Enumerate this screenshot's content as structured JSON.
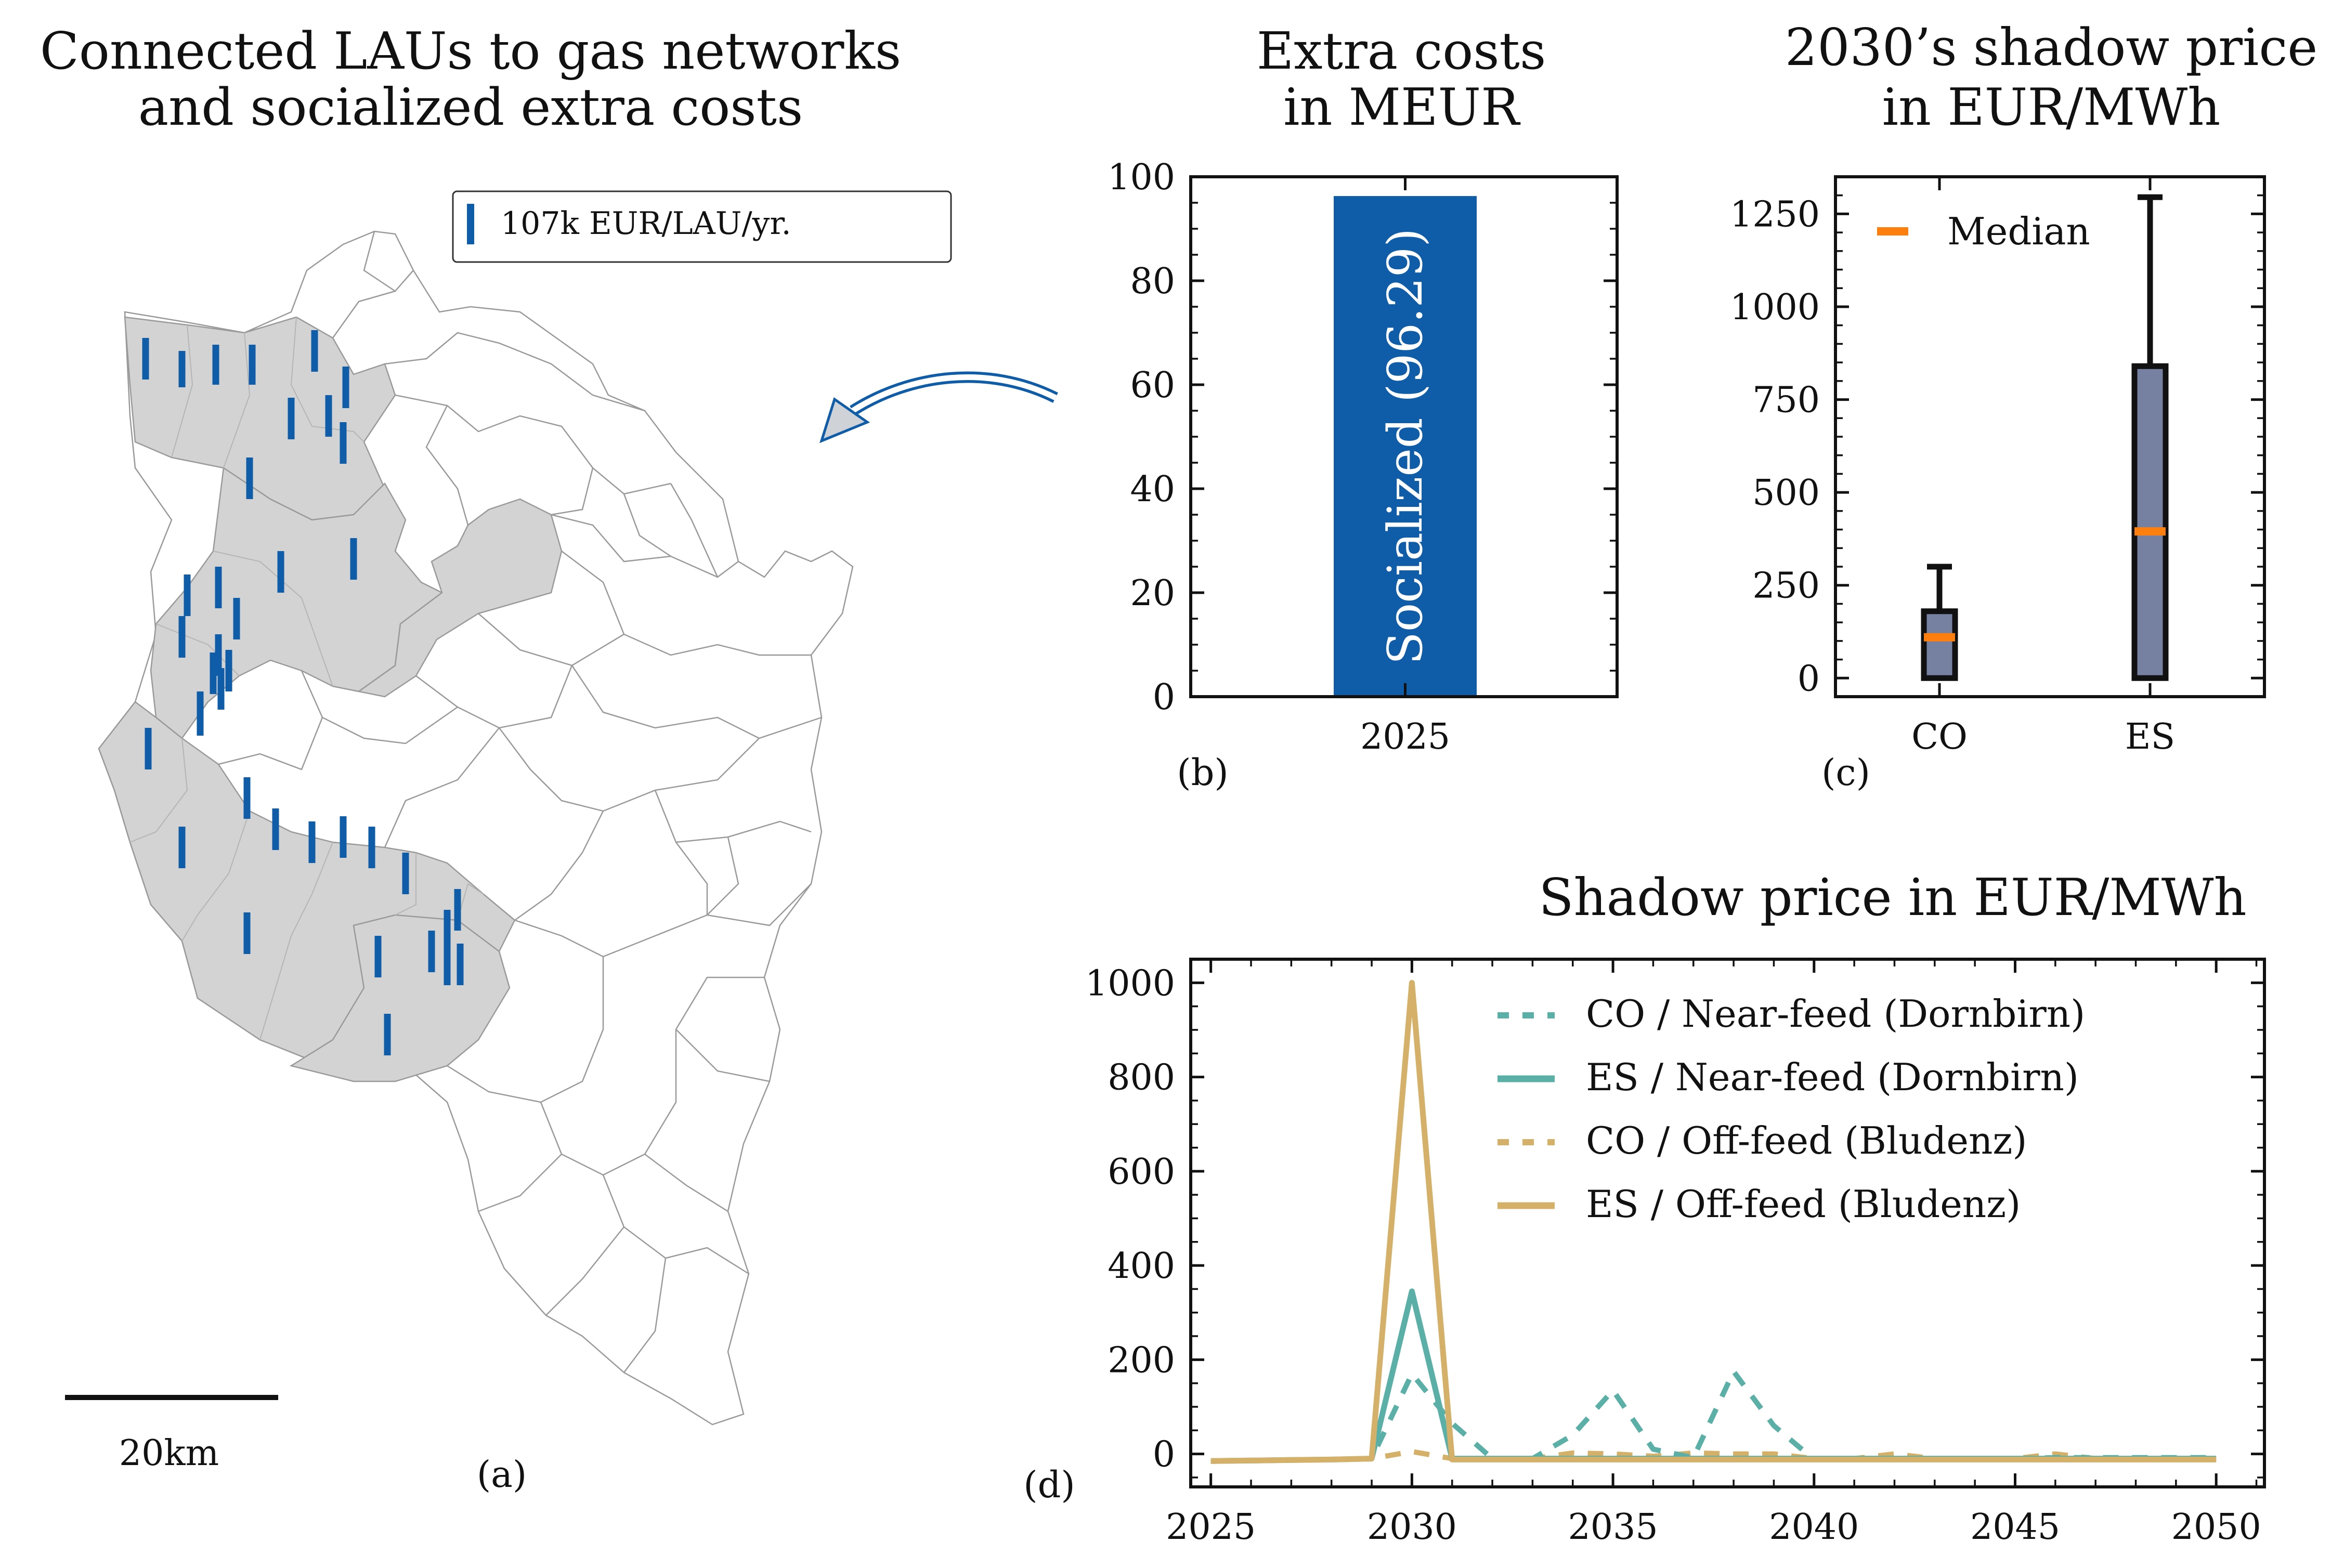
{
  "colors": {
    "bar": "#0f5ca8",
    "box": "#7680a0",
    "median": "#ff7f0e",
    "near_feed": "#5aafa6",
    "off_feed": "#d4b068",
    "connected_area": "#d3d3d3"
  },
  "map": {
    "title_line1": "Connected LAUs to gas networks",
    "title_line2": "and socialized extra costs",
    "legend_label": "107k EUR/LAU/yr.",
    "scale_label": "20km",
    "panel_label": "(a)"
  },
  "arrow": {
    "icon": "curved-arrow-icon"
  },
  "chart_data": [
    {
      "id": "b",
      "type": "bar",
      "title_line1": "Extra costs",
      "title_line2": "in MEUR",
      "categories": [
        "2025"
      ],
      "values": [
        96.29
      ],
      "bar_label": "Socialized (96.29)",
      "ylim": [
        0,
        100
      ],
      "yticks": [
        "0",
        "20",
        "40",
        "60",
        "80",
        "100"
      ],
      "panel_label": "(b)"
    },
    {
      "id": "c",
      "type": "box",
      "title_line1": "2030’s shadow price",
      "title_line2": "in EUR/MWh",
      "categories": [
        "CO",
        "ES"
      ],
      "boxes": [
        {
          "min": 0,
          "q1": 0,
          "median": 110,
          "q3": 180,
          "max": 300
        },
        {
          "min": 0,
          "q1": 0,
          "median": 395,
          "q3": 840,
          "max": 1295
        }
      ],
      "legend": [
        "Median"
      ],
      "ylim": [
        -50,
        1350
      ],
      "yticks": [
        "0",
        "250",
        "500",
        "750",
        "1000",
        "1250"
      ],
      "panel_label": "(c)"
    },
    {
      "id": "d",
      "type": "line",
      "title": "Shadow price in EUR/MWh",
      "x": [
        2025,
        2026,
        2027,
        2028,
        2029,
        2030,
        2031,
        2032,
        2033,
        2034,
        2035,
        2036,
        2037,
        2038,
        2039,
        2040,
        2041,
        2042,
        2043,
        2044,
        2045,
        2046,
        2047,
        2048,
        2049,
        2050
      ],
      "xlim": [
        2024.5,
        2051.2
      ],
      "ylim": [
        -70,
        1050
      ],
      "xticks": [
        "2025",
        "2030",
        "2035",
        "2040",
        "2045",
        "2050"
      ],
      "yticks": [
        "0",
        "200",
        "400",
        "600",
        "800",
        "1000"
      ],
      "series": [
        {
          "name": "CO / Near-feed (Dornbirn)",
          "values": [
            -15,
            -14,
            -13,
            -12,
            -10,
            170,
            65,
            -10,
            -10,
            40,
            135,
            10,
            -8,
            175,
            60,
            -12,
            -10,
            -12,
            -12,
            -10,
            -10,
            -8,
            -8,
            -8,
            -8,
            -8
          ]
        },
        {
          "name": "ES / Near-feed (Dornbirn)",
          "values": [
            -15,
            -14,
            -13,
            -12,
            -10,
            345,
            -10,
            -10,
            -10,
            -10,
            -10,
            -10,
            -10,
            -10,
            -10,
            -10,
            -10,
            -10,
            -10,
            -10,
            -10,
            -10,
            -10,
            -10,
            -10,
            -10
          ]
        },
        {
          "name": "CO / Off-feed (Bludenz)",
          "values": [
            -15,
            -14,
            -13,
            -12,
            -10,
            5,
            -10,
            -10,
            -10,
            2,
            0,
            -5,
            2,
            0,
            0,
            -10,
            -10,
            0,
            -10,
            -10,
            -10,
            0,
            -10,
            -10,
            -10,
            -10
          ]
        },
        {
          "name": "ES / Off-feed (Bludenz)",
          "values": [
            -15,
            -14,
            -13,
            -12,
            -10,
            1000,
            -12,
            -12,
            -12,
            -12,
            -12,
            -12,
            -12,
            -12,
            -12,
            -12,
            -12,
            -12,
            -12,
            -12,
            -12,
            -12,
            -12,
            -12,
            -12,
            -12
          ]
        }
      ],
      "panel_label": "(d)"
    }
  ]
}
